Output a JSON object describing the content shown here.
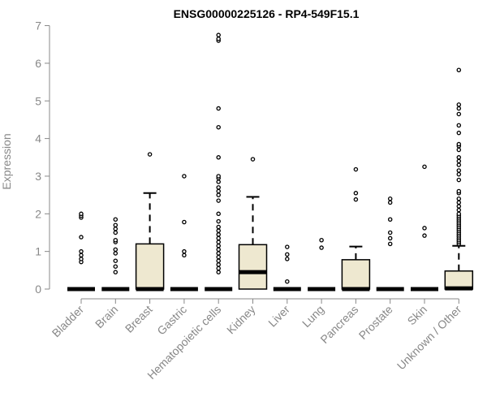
{
  "chart_data": {
    "type": "boxplot",
    "title": "ENSG00000225126 - RP4-549F15.1",
    "ylabel": "Expression",
    "xlabel": "",
    "ylim": [
      0,
      7
    ],
    "yticks": [
      0,
      1,
      2,
      3,
      4,
      5,
      6,
      7
    ],
    "grid": false,
    "box_fill": "#EEE8D0",
    "categories": [
      "Bladder",
      "Brain",
      "Breast",
      "Gastric",
      "Hematopoietic cells",
      "Kidney",
      "Liver",
      "Lung",
      "Pancreas",
      "Prostate",
      "Skin",
      "Unknown / Other"
    ],
    "boxes": [
      {
        "q1": 0,
        "median": 0,
        "q3": 0,
        "whisker_low": 0,
        "whisker_high": 0,
        "outliers": [
          0.72,
          0.8,
          0.9,
          1.0,
          1.38,
          1.9,
          1.95,
          2.0
        ]
      },
      {
        "q1": 0,
        "median": 0,
        "q3": 0,
        "whisker_low": 0,
        "whisker_high": 0,
        "outliers": [
          0.45,
          0.6,
          0.75,
          0.95,
          1.05,
          1.25,
          1.3,
          1.5,
          1.6,
          1.7,
          1.85
        ]
      },
      {
        "q1": 0,
        "median": 0,
        "q3": 1.2,
        "whisker_low": 0,
        "whisker_high": 2.55,
        "outliers": [
          3.58
        ]
      },
      {
        "q1": 0,
        "median": 0,
        "q3": 0,
        "whisker_low": 0,
        "whisker_high": 0,
        "outliers": [
          0.9,
          1.0,
          1.78,
          3.0
        ]
      },
      {
        "q1": 0,
        "median": 0,
        "q3": 0,
        "whisker_low": 0,
        "whisker_high": 0,
        "outliers": [
          0.45,
          0.55,
          0.65,
          0.75,
          0.85,
          0.95,
          1.05,
          1.15,
          1.25,
          1.35,
          1.45,
          1.55,
          1.65,
          1.8,
          2.0,
          2.35,
          2.5,
          2.6,
          2.7,
          2.85,
          2.95,
          3.0,
          3.5,
          4.3,
          4.8,
          6.6,
          6.65,
          6.75
        ]
      },
      {
        "q1": 0,
        "median": 0.45,
        "q3": 1.18,
        "whisker_low": 0,
        "whisker_high": 2.45,
        "outliers": [
          3.45
        ]
      },
      {
        "q1": 0,
        "median": 0,
        "q3": 0,
        "whisker_low": 0,
        "whisker_high": 0,
        "outliers": [
          0.2,
          0.8,
          0.92,
          1.12
        ]
      },
      {
        "q1": 0,
        "median": 0,
        "q3": 0,
        "whisker_low": 0,
        "whisker_high": 0,
        "outliers": [
          1.1,
          1.3
        ]
      },
      {
        "q1": 0,
        "median": 0,
        "q3": 0.78,
        "whisker_low": 0,
        "whisker_high": 1.13,
        "outliers": [
          2.38,
          2.55,
          3.18
        ]
      },
      {
        "q1": 0,
        "median": 0,
        "q3": 0,
        "whisker_low": 0,
        "whisker_high": 0,
        "outliers": [
          1.2,
          1.35,
          1.5,
          1.85,
          2.3,
          2.4
        ]
      },
      {
        "q1": 0,
        "median": 0,
        "q3": 0,
        "whisker_low": 0,
        "whisker_high": 0,
        "outliers": [
          1.42,
          1.62,
          3.25
        ]
      },
      {
        "q1": 0,
        "median": 0.02,
        "q3": 0.48,
        "whisker_low": 0,
        "whisker_high": 1.15,
        "outliers": [
          1.2,
          1.25,
          1.3,
          1.35,
          1.4,
          1.45,
          1.5,
          1.55,
          1.6,
          1.65,
          1.7,
          1.75,
          1.8,
          1.85,
          1.9,
          1.95,
          2.0,
          2.1,
          2.2,
          2.3,
          2.4,
          2.55,
          2.6,
          2.9,
          3.05,
          3.15,
          3.3,
          3.4,
          3.5,
          3.7,
          3.8,
          3.85,
          4.15,
          4.35,
          4.65,
          4.8,
          4.9,
          5.82
        ]
      }
    ]
  }
}
